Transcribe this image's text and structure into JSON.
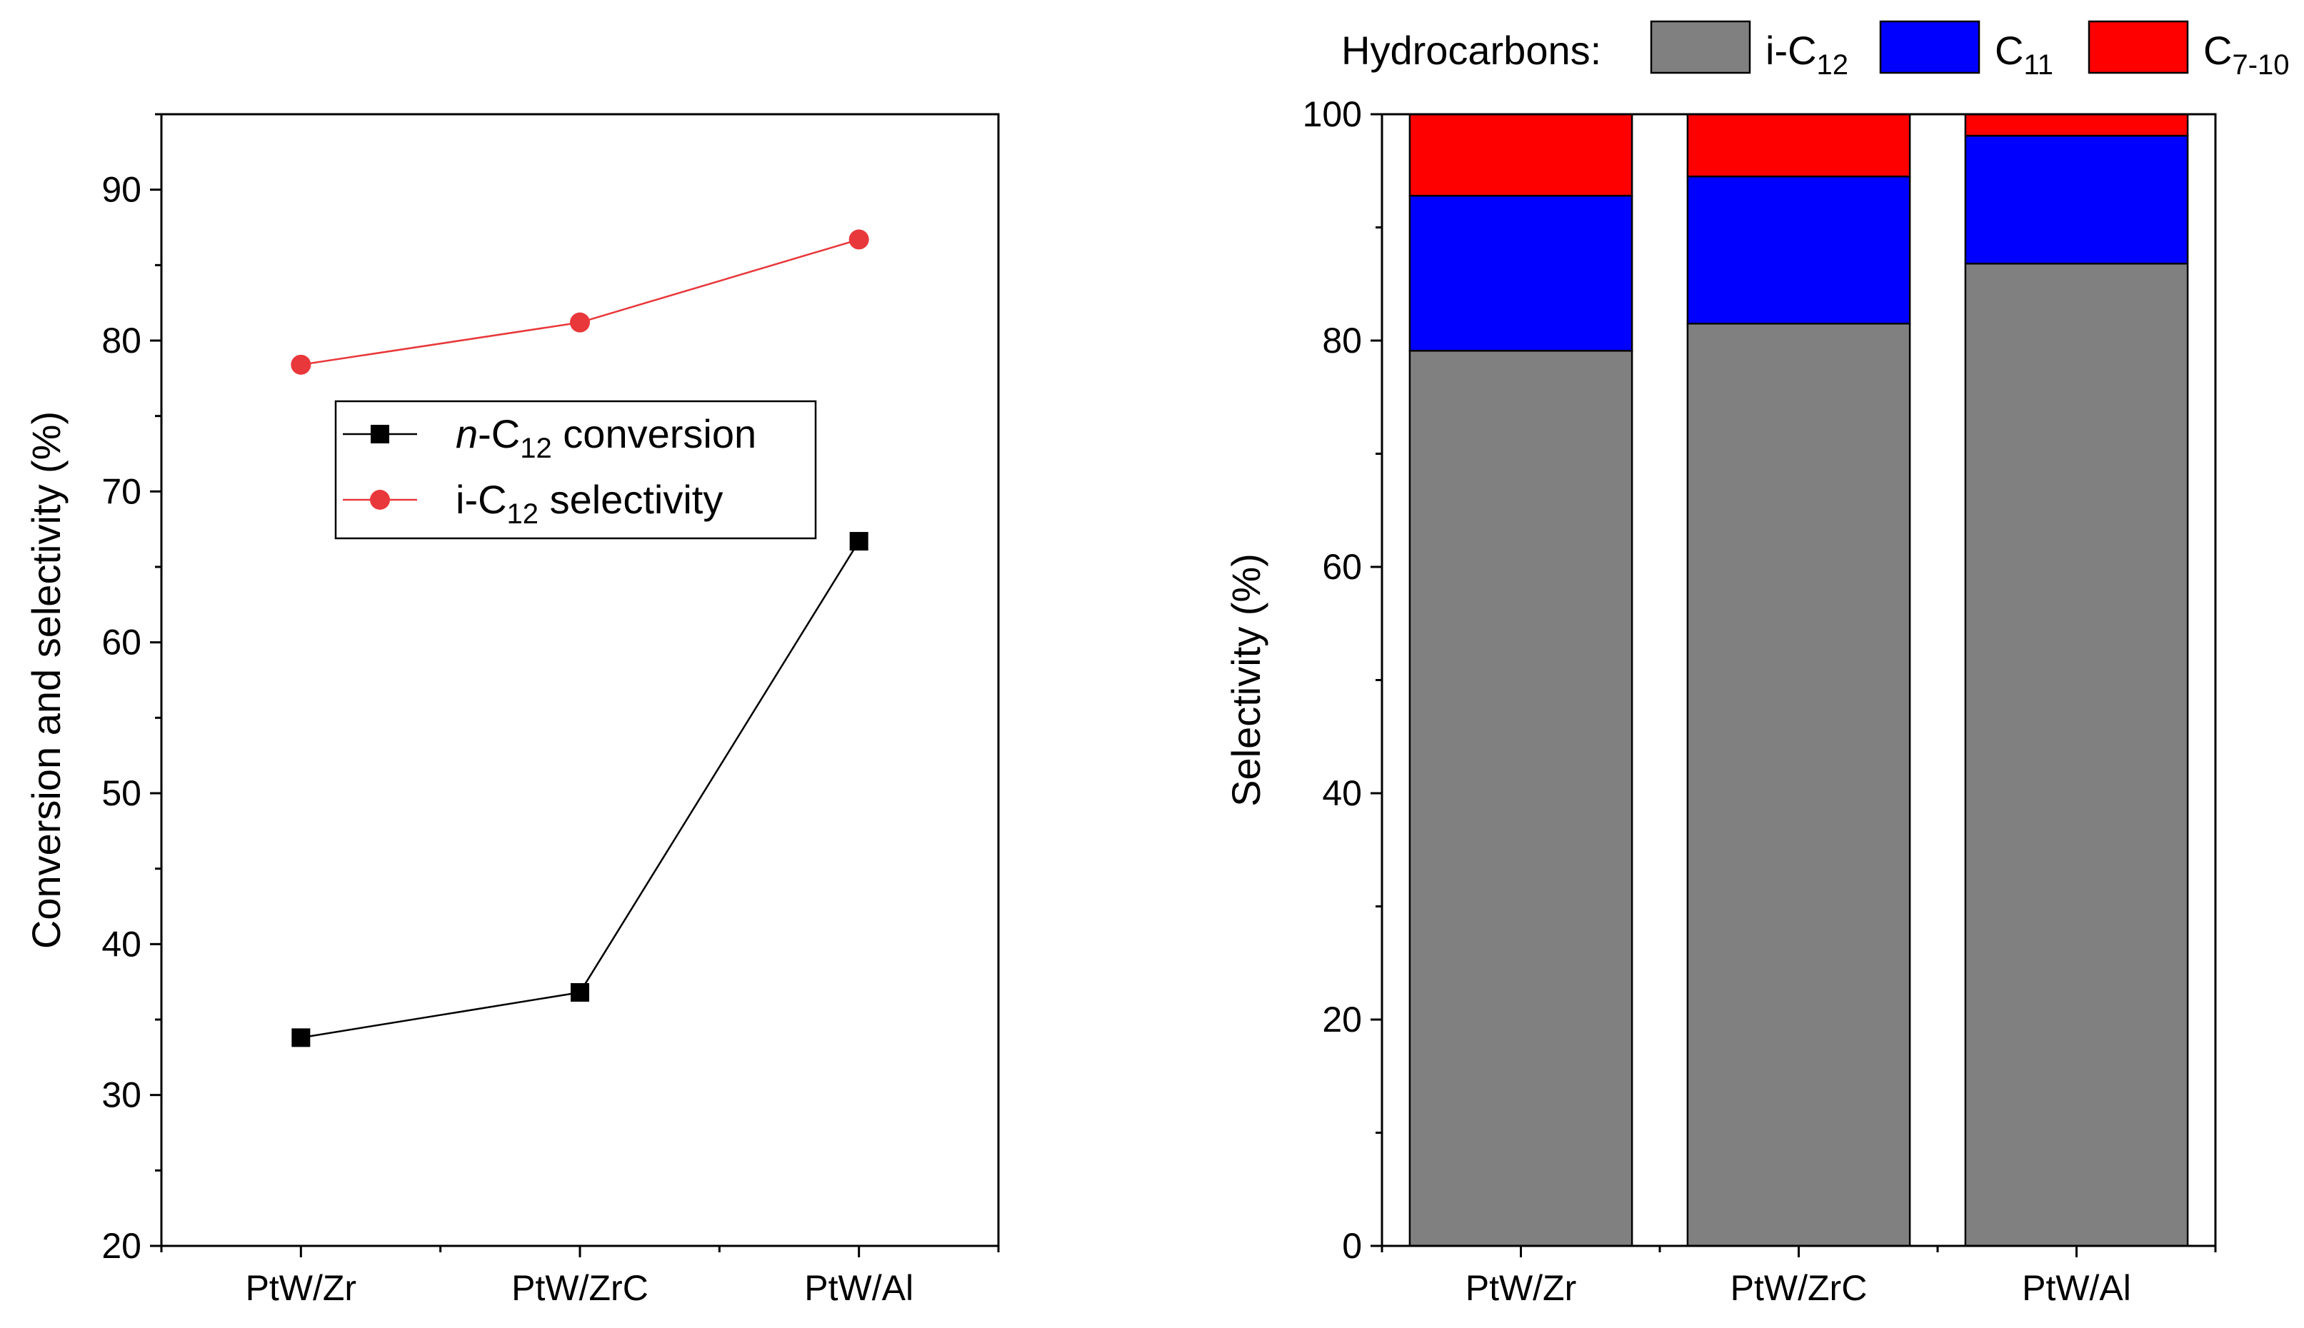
{
  "chart_data": [
    {
      "type": "line",
      "title": "",
      "xlabel": "",
      "ylabel": "Conversion and selectivity (%)",
      "ylim": [
        20,
        95
      ],
      "yticks": [
        20,
        30,
        40,
        50,
        60,
        70,
        80,
        90
      ],
      "categories": [
        "PtW/Zr",
        "PtW/ZrC",
        "PtW/Al"
      ],
      "grid": false,
      "legend_position": "center-left",
      "series": [
        {
          "name": "n-C12 conversion",
          "name_parts": {
            "italic": "n",
            "base": "-C",
            "sub": "12",
            "tail": " conversion"
          },
          "marker": "square",
          "color": "#000000",
          "values": [
            33.8,
            36.8,
            66.7
          ]
        },
        {
          "name": "i-C12 selectivity",
          "name_parts": {
            "italic": "",
            "base": "i-C",
            "sub": "12",
            "tail": " selectivity"
          },
          "marker": "circle",
          "color": "#e8383b",
          "values": [
            78.4,
            81.2,
            86.7
          ]
        }
      ]
    },
    {
      "type": "bar",
      "stacked": true,
      "title": "",
      "xlabel": "",
      "ylabel": "Selectivity (%)",
      "ylim": [
        0,
        100
      ],
      "yticks": [
        0,
        20,
        40,
        60,
        80,
        100
      ],
      "categories": [
        "PtW/Zr",
        "PtW/ZrC",
        "PtW/Al"
      ],
      "grid": false,
      "legend_position": "top",
      "legend_title": "Hydrocarbons:",
      "series": [
        {
          "name": "i-C12",
          "label_base": "i-C",
          "label_sub": "12",
          "color": "#808080",
          "values": [
            79.1,
            81.5,
            86.8
          ]
        },
        {
          "name": "C11",
          "label_base": "C",
          "label_sub": "11",
          "color": "#0000ff",
          "values": [
            13.7,
            13.0,
            11.3
          ]
        },
        {
          "name": "C7-10",
          "label_base": "C",
          "label_sub": "7-10",
          "color": "#ff0000",
          "values": [
            7.2,
            5.5,
            1.9
          ]
        }
      ]
    }
  ]
}
